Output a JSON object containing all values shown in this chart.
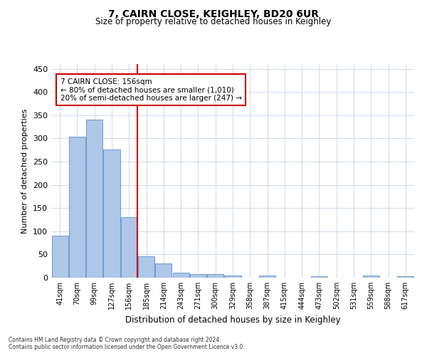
{
  "title": "7, CAIRN CLOSE, KEIGHLEY, BD20 6UR",
  "subtitle": "Size of property relative to detached houses in Keighley",
  "xlabel": "Distribution of detached houses by size in Keighley",
  "ylabel": "Number of detached properties",
  "categories": [
    "41sqm",
    "70sqm",
    "99sqm",
    "127sqm",
    "156sqm",
    "185sqm",
    "214sqm",
    "243sqm",
    "271sqm",
    "300sqm",
    "329sqm",
    "358sqm",
    "387sqm",
    "415sqm",
    "444sqm",
    "473sqm",
    "502sqm",
    "531sqm",
    "559sqm",
    "588sqm",
    "617sqm"
  ],
  "values": [
    91,
    303,
    340,
    276,
    131,
    46,
    31,
    10,
    8,
    8,
    5,
    0,
    4,
    0,
    0,
    3,
    0,
    0,
    4,
    0,
    3
  ],
  "bar_color": "#aec6e8",
  "bar_edge_color": "#5b8fc9",
  "vline_index": 4,
  "vline_color": "#cc0000",
  "annotation_text": "7 CAIRN CLOSE: 156sqm\n← 80% of detached houses are smaller (1,010)\n20% of semi-detached houses are larger (247) →",
  "annotation_box_color": "#ffffff",
  "annotation_box_edge": "#cc0000",
  "ylim": [
    0,
    460
  ],
  "yticks": [
    0,
    50,
    100,
    150,
    200,
    250,
    300,
    350,
    400,
    450
  ],
  "footer_line1": "Contains HM Land Registry data © Crown copyright and database right 2024.",
  "footer_line2": "Contains public sector information licensed under the Open Government Licence v3.0.",
  "background_color": "#ffffff",
  "grid_color": "#c8d4e8"
}
